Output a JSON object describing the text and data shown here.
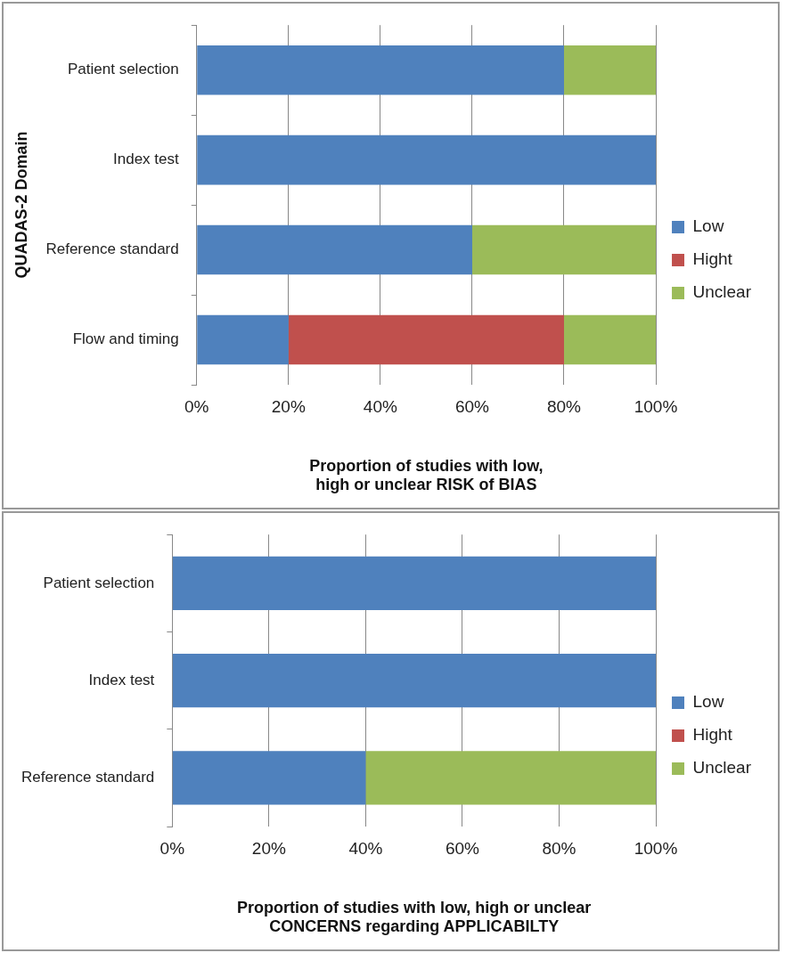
{
  "chart_data": [
    {
      "type": "bar",
      "orientation": "horizontal",
      "stacked": true,
      "ylabel": "QUADAS-2 Domain",
      "xlabel": "Proportion of studies with low,\nhigh or unclear RISK of BIAS",
      "categories": [
        "Patient selection",
        "Index test",
        "Reference standard",
        "Flow and timing"
      ],
      "series": [
        {
          "name": "Low",
          "color": "#4f81bd",
          "values": [
            80,
            100,
            60,
            20
          ]
        },
        {
          "name": "Hight",
          "color": "#c0504d",
          "values": [
            0,
            0,
            0,
            60
          ]
        },
        {
          "name": "Unclear",
          "color": "#9bbb59",
          "values": [
            20,
            0,
            40,
            20
          ]
        }
      ],
      "xlim": [
        0,
        100
      ],
      "xticks": [
        {
          "value": 0,
          "label": "0%"
        },
        {
          "value": 20,
          "label": "20%"
        },
        {
          "value": 40,
          "label": "40%"
        },
        {
          "value": 60,
          "label": "60%"
        },
        {
          "value": 80,
          "label": "80%"
        },
        {
          "value": 100,
          "label": "100%"
        }
      ],
      "grid": "x",
      "legend": "right"
    },
    {
      "type": "bar",
      "orientation": "horizontal",
      "stacked": true,
      "xlabel": "Proportion of studies with low, high or unclear\nCONCERNS regarding APPLICABILTY",
      "categories": [
        "Patient selection",
        "Index test",
        "Reference standard"
      ],
      "series": [
        {
          "name": "Low",
          "color": "#4f81bd",
          "values": [
            100,
            100,
            40
          ]
        },
        {
          "name": "Hight",
          "color": "#c0504d",
          "values": [
            0,
            0,
            0
          ]
        },
        {
          "name": "Unclear",
          "color": "#9bbb59",
          "values": [
            0,
            0,
            60
          ]
        }
      ],
      "xlim": [
        0,
        100
      ],
      "xticks": [
        {
          "value": 0,
          "label": "0%"
        },
        {
          "value": 20,
          "label": "20%"
        },
        {
          "value": 40,
          "label": "40%"
        },
        {
          "value": 60,
          "label": "60%"
        },
        {
          "value": 80,
          "label": "80%"
        },
        {
          "value": 100,
          "label": "100%"
        }
      ],
      "grid": "x",
      "legend": "right"
    }
  ]
}
